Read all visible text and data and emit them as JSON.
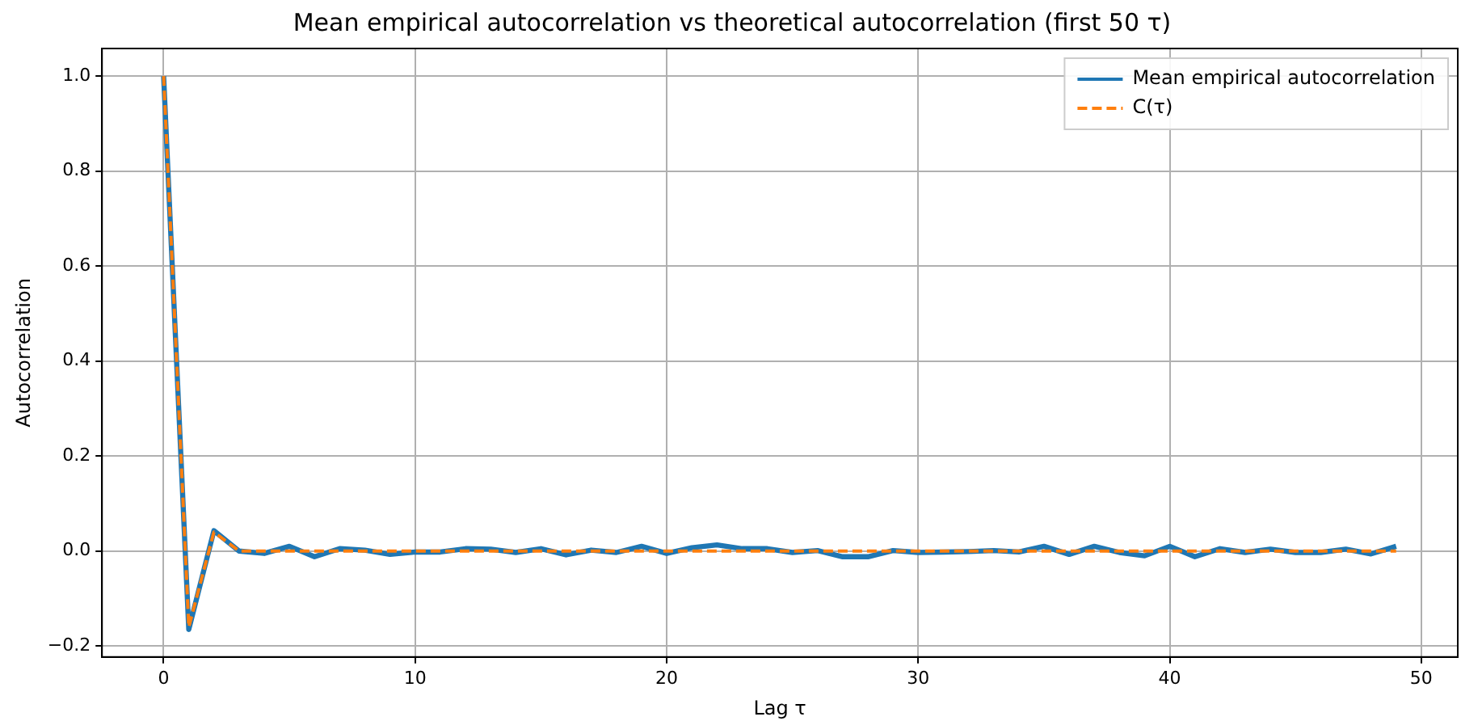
{
  "chart_data": {
    "type": "line",
    "title": "Mean empirical autocorrelation vs theoretical autocorrelation (first 50 τ)",
    "xlabel": "Lag τ",
    "ylabel": "Autocorrelation",
    "x": [
      0,
      1,
      2,
      3,
      4,
      5,
      6,
      7,
      8,
      9,
      10,
      11,
      12,
      13,
      14,
      15,
      16,
      17,
      18,
      19,
      20,
      21,
      22,
      23,
      24,
      25,
      26,
      27,
      28,
      29,
      30,
      31,
      32,
      33,
      34,
      35,
      36,
      37,
      38,
      39,
      40,
      41,
      42,
      43,
      44,
      45,
      46,
      47,
      48,
      49
    ],
    "series": [
      {
        "name": "Mean empirical autocorrelation",
        "color": "#1f77b4",
        "line_style": "solid",
        "values": [
          1,
          -0.165,
          0.043,
          0,
          -0.005,
          0.01,
          -0.012,
          0.005,
          0.002,
          -0.007,
          -0.002,
          -0.002,
          0.005,
          0.004,
          -0.003,
          0.005,
          -0.008,
          0.002,
          -0.003,
          0.01,
          -0.005,
          0.007,
          0.013,
          0.005,
          0.005,
          -0.003,
          0.001,
          -0.012,
          -0.012,
          0.001,
          -0.003,
          -0.002,
          -0.001,
          0.001,
          -0.002,
          0.01,
          -0.007,
          0.01,
          -0.003,
          -0.01,
          0.01,
          -0.012,
          0.005,
          -0.003,
          0.004,
          -0.003,
          -0.003,
          0.004,
          -0.006,
          0.01
        ]
      },
      {
        "name": "C(τ)",
        "color": "#ff7f0e",
        "line_style": "dashed",
        "values": [
          1,
          -0.16,
          0.04,
          0,
          0,
          0,
          0,
          0,
          0,
          0,
          0,
          0,
          0,
          0,
          0,
          0,
          0,
          0,
          0,
          0,
          0,
          0,
          0,
          0,
          0,
          0,
          0,
          0,
          0,
          0,
          0,
          0,
          0,
          0,
          0,
          0,
          0,
          0,
          0,
          0,
          0,
          0,
          0,
          0,
          0,
          0,
          0,
          0,
          0,
          0
        ]
      }
    ],
    "xlim": [
      -2.45,
      51.45
    ],
    "xticks": [
      0,
      10,
      20,
      30,
      40,
      50
    ],
    "ylim": [
      -0.223,
      1.058
    ],
    "yticks": [
      {
        "value": -0.2,
        "label": "−0.2"
      },
      {
        "value": 0,
        "label": "0.0"
      },
      0.2,
      0.4,
      0.6,
      0.8,
      {
        "value": 1,
        "label": "1.0"
      }
    ],
    "grid": true,
    "legend": "top right",
    "marker": "none"
  }
}
